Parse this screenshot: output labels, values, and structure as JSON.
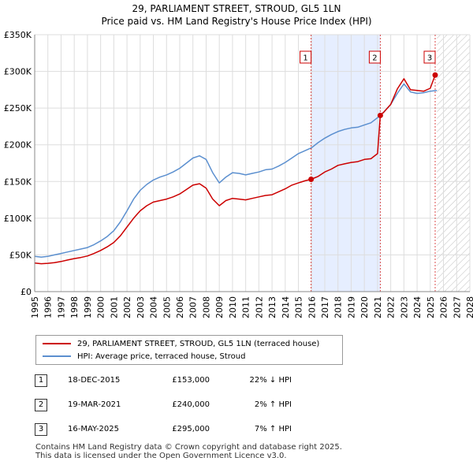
{
  "title_line1": "29, PARLIAMENT STREET, STROUD, GL5 1LN",
  "title_line2": "Price paid vs. HM Land Registry's House Price Index (HPI)",
  "chart_data": {
    "type": "line",
    "title": "29, PARLIAMENT STREET, STROUD, GL5 1LN — Price paid vs. HM Land Registry's House Price Index (HPI)",
    "xlim": [
      1995,
      2028
    ],
    "ylim": [
      0,
      350000
    ],
    "grid": true,
    "x_ticks": [
      1995,
      1996,
      1997,
      1998,
      1999,
      2000,
      2001,
      2002,
      2003,
      2004,
      2005,
      2006,
      2007,
      2008,
      2009,
      2010,
      2011,
      2012,
      2013,
      2014,
      2015,
      2016,
      2017,
      2018,
      2019,
      2020,
      2021,
      2022,
      2023,
      2024,
      2025,
      2026,
      2027,
      2028
    ],
    "y_ticks": [
      0,
      50000,
      100000,
      150000,
      200000,
      250000,
      300000,
      350000
    ],
    "y_tick_labels": [
      "£0",
      "£50K",
      "£100K",
      "£150K",
      "£200K",
      "£250K",
      "£300K",
      "£350K"
    ],
    "series": [
      {
        "name": "29, PARLIAMENT STREET, STROUD, GL5 1LN (terraced house)",
        "color": "#cc0000",
        "x": [
          1995,
          1995.5,
          1996,
          1996.5,
          1997,
          1997.5,
          1998,
          1998.5,
          1999,
          1999.5,
          2000,
          2000.5,
          2001,
          2001.5,
          2002,
          2002.5,
          2003,
          2003.5,
          2004,
          2004.5,
          2005,
          2005.5,
          2006,
          2006.5,
          2007,
          2007.5,
          2008,
          2008.5,
          2009,
          2009.5,
          2010,
          2010.5,
          2011,
          2011.5,
          2012,
          2012.5,
          2013,
          2013.5,
          2014,
          2014.5,
          2015,
          2015.5,
          2015.96,
          2016.5,
          2017,
          2017.5,
          2018,
          2018.5,
          2019,
          2019.5,
          2020,
          2020.5,
          2021,
          2021.21,
          2021.5,
          2022,
          2022.5,
          2023,
          2023.5,
          2024,
          2024.5,
          2025,
          2025.37
        ],
        "y": [
          39000,
          38000,
          38500,
          39500,
          41000,
          43000,
          45000,
          46500,
          48500,
          52000,
          56000,
          61000,
          67000,
          76000,
          88000,
          100000,
          110000,
          117000,
          122000,
          124000,
          126000,
          129000,
          133000,
          139000,
          145000,
          147000,
          141000,
          126000,
          117000,
          124000,
          127000,
          126000,
          125000,
          127000,
          129000,
          131000,
          132000,
          136000,
          140000,
          145000,
          148000,
          151000,
          153000,
          157000,
          163000,
          167000,
          172000,
          174000,
          176000,
          177000,
          180000,
          181000,
          188000,
          240000,
          245000,
          255000,
          276000,
          290000,
          275000,
          274000,
          273000,
          277000,
          295000
        ]
      },
      {
        "name": "HPI: Average price, terraced house, Stroud",
        "color": "#5b8fcf",
        "x": [
          1995,
          1995.5,
          1996,
          1996.5,
          1997,
          1997.5,
          1998,
          1998.5,
          1999,
          1999.5,
          2000,
          2000.5,
          2001,
          2001.5,
          2002,
          2002.5,
          2003,
          2003.5,
          2004,
          2004.5,
          2005,
          2005.5,
          2006,
          2006.5,
          2007,
          2007.5,
          2008,
          2008.5,
          2009,
          2009.5,
          2010,
          2010.5,
          2011,
          2011.5,
          2012,
          2012.5,
          2013,
          2013.5,
          2014,
          2014.5,
          2015,
          2015.5,
          2016,
          2016.5,
          2017,
          2017.5,
          2018,
          2018.5,
          2019,
          2019.5,
          2020,
          2020.5,
          2021,
          2021.5,
          2022,
          2022.5,
          2023,
          2023.5,
          2024,
          2024.5,
          2025,
          2025.5
        ],
        "y": [
          48000,
          47000,
          48000,
          50000,
          52000,
          54000,
          56000,
          58000,
          60000,
          64000,
          69000,
          75000,
          83000,
          95000,
          110000,
          126000,
          138000,
          146000,
          152000,
          156000,
          159000,
          163000,
          168000,
          175000,
          182000,
          185000,
          180000,
          162000,
          148000,
          156000,
          162000,
          161000,
          159000,
          161000,
          163000,
          166000,
          167000,
          171000,
          176000,
          182000,
          188000,
          192000,
          196000,
          203000,
          209000,
          214000,
          218000,
          221000,
          223000,
          224000,
          227000,
          230000,
          237000,
          245000,
          255000,
          270000,
          283000,
          272000,
          270000,
          271000,
          273000,
          274000
        ]
      }
    ],
    "sales": [
      {
        "label": "1",
        "x": 2015.96,
        "y": 153000
      },
      {
        "label": "2",
        "x": 2021.21,
        "y": 240000
      },
      {
        "label": "3",
        "x": 2025.37,
        "y": 295000
      }
    ],
    "shaded_ranges": [
      [
        2015.96,
        2021.21
      ]
    ],
    "hatched_from": 2025.5
  },
  "legend": {
    "items": [
      {
        "label": "29, PARLIAMENT STREET, STROUD, GL5 1LN (terraced house)",
        "color": "#cc0000"
      },
      {
        "label": "HPI: Average price, terraced house, Stroud",
        "color": "#5b8fcf"
      }
    ]
  },
  "table": {
    "rows": [
      {
        "num": "1",
        "date": "18-DEC-2015",
        "price": "£153,000",
        "hpi": "22% ↓ HPI"
      },
      {
        "num": "2",
        "date": "19-MAR-2021",
        "price": "£240,000",
        "hpi": "2% ↑ HPI"
      },
      {
        "num": "3",
        "date": "16-MAY-2025",
        "price": "£295,000",
        "hpi": "7% ↑ HPI"
      }
    ]
  },
  "footer": {
    "line1": "Contains HM Land Registry data © Crown copyright and database right 2025.",
    "line2": "This data is licensed under the Open Government Licence v3.0."
  }
}
